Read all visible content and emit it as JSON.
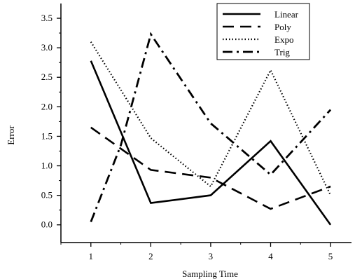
{
  "chart_data": {
    "type": "line",
    "title": "",
    "xlabel": "Sampling Time",
    "ylabel": "Error",
    "x": [
      1,
      2,
      3,
      4,
      5
    ],
    "xlim": [
      0.5,
      5.35
    ],
    "ylim": [
      -0.3,
      3.75
    ],
    "xticks": [
      "1",
      "2",
      "3",
      "4",
      "5"
    ],
    "yticks": [
      "0.0",
      "0.5",
      "1.0",
      "1.5",
      "2.0",
      "2.5",
      "3.0",
      "3.5"
    ],
    "grid": false,
    "legend_position": "top-right",
    "series": [
      {
        "name": "Linear",
        "style": "solid",
        "points": [
          [
            1,
            2.78
          ],
          [
            2,
            0.37
          ],
          [
            3,
            0.5
          ],
          [
            4,
            1.42
          ],
          [
            5,
            0.0
          ]
        ]
      },
      {
        "name": "Poly",
        "style": "dashed",
        "points": [
          [
            1,
            1.65
          ],
          [
            2,
            0.93
          ],
          [
            3,
            0.8
          ],
          [
            4,
            0.27
          ],
          [
            5,
            0.65
          ]
        ]
      },
      {
        "name": "Expo",
        "style": "dotted",
        "points": [
          [
            1,
            3.1
          ],
          [
            2,
            1.47
          ],
          [
            3,
            0.65
          ],
          [
            4,
            2.62
          ],
          [
            5,
            0.5
          ]
        ]
      },
      {
        "name": "Trig",
        "style": "dashdot",
        "points": [
          [
            1,
            0.05
          ],
          [
            1.5,
            1.35
          ],
          [
            2,
            3.23
          ],
          [
            3,
            1.72
          ],
          [
            4,
            0.85
          ],
          [
            5,
            1.95
          ]
        ]
      }
    ]
  }
}
